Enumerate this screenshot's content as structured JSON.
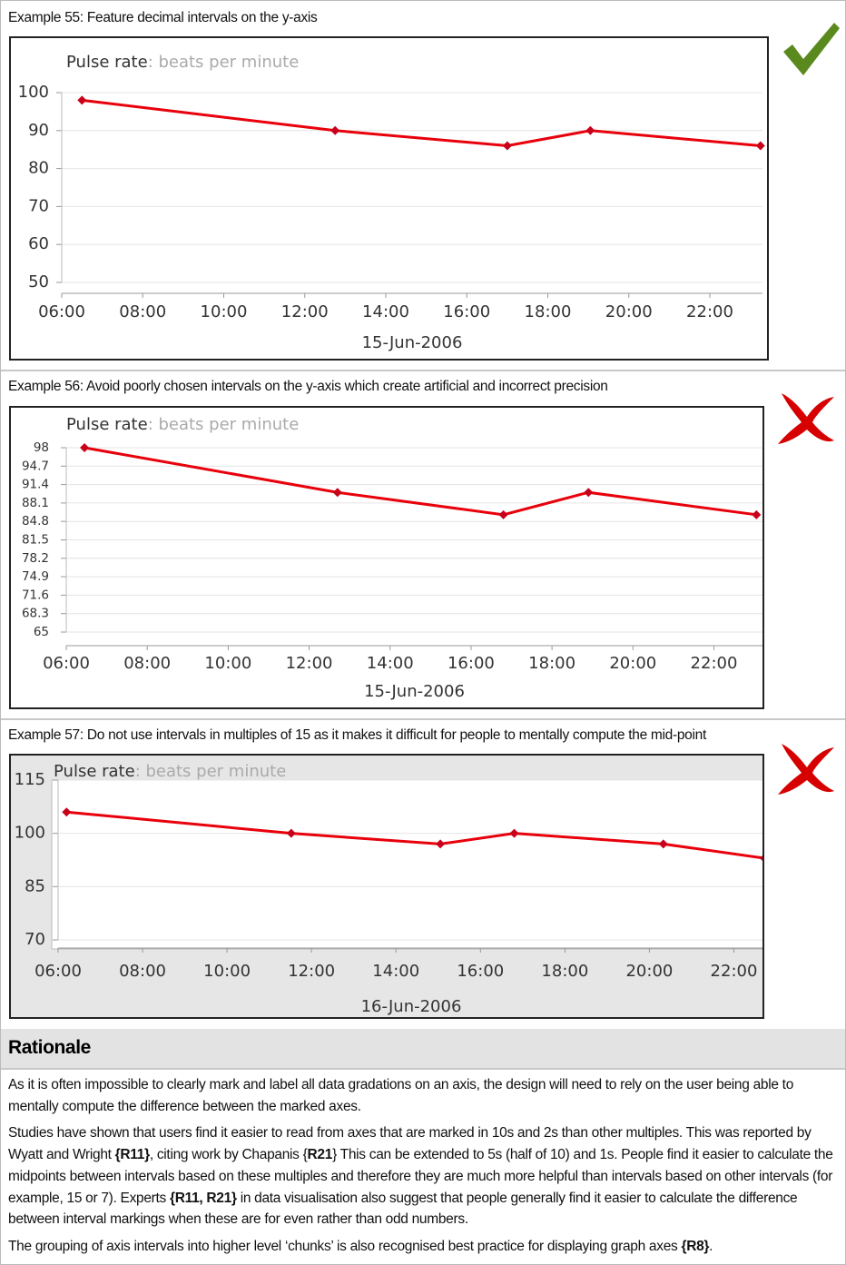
{
  "examples": [
    {
      "caption": "Example 55: Feature decimal intervals on the y-axis"
    },
    {
      "caption": "Example 56: Avoid poorly chosen intervals on the y-axis which create artificial and incorrect precision"
    },
    {
      "caption": "Example 57: Do not use intervals in multiples of 15 as it makes it difficult for people to mentally compute the mid-point"
    }
  ],
  "chart_data": [
    {
      "type": "line",
      "title": "Pulse rate",
      "subtitle": ":  beats per minute",
      "xlabel": "15-Jun-2006",
      "x": [
        6.5,
        12.75,
        17,
        19.05,
        23.25
      ],
      "values": [
        98,
        90,
        86,
        90,
        86
      ],
      "color": "#e8000b",
      "xlim": [
        6,
        23.3
      ],
      "xticks": [
        {
          "value": 6,
          "label": "06:00"
        },
        {
          "value": 8,
          "label": "08:00"
        },
        {
          "value": 10,
          "label": "10:00"
        },
        {
          "value": 12,
          "label": "12:00"
        },
        {
          "value": 14,
          "label": "14:00"
        },
        {
          "value": 16,
          "label": "16:00"
        },
        {
          "value": 18,
          "label": "18:00"
        },
        {
          "value": 20,
          "label": "20:00"
        },
        {
          "value": 22,
          "label": "22:00"
        }
      ],
      "ylim": [
        50,
        100
      ],
      "yticks": [
        50,
        60,
        70,
        80,
        90,
        100
      ],
      "grid": true
    },
    {
      "type": "line",
      "title": "Pulse rate",
      "subtitle": ":  beats per minute",
      "xlabel": "15-Jun-2006",
      "x": [
        6.45,
        12.7,
        16.8,
        18.9,
        23.05
      ],
      "values": [
        98,
        90,
        86,
        90,
        86
      ],
      "color": "#e8000b",
      "xlim": [
        6,
        23.2
      ],
      "xticks": [
        {
          "value": 6,
          "label": "06:00"
        },
        {
          "value": 8,
          "label": "08:00"
        },
        {
          "value": 10,
          "label": "10:00"
        },
        {
          "value": 12,
          "label": "12:00"
        },
        {
          "value": 14,
          "label": "14:00"
        },
        {
          "value": 16,
          "label": "16:00"
        },
        {
          "value": 18,
          "label": "18:00"
        },
        {
          "value": 20,
          "label": "20:00"
        },
        {
          "value": 22,
          "label": "22:00"
        }
      ],
      "ylim": [
        65,
        98
      ],
      "yticks": [
        65,
        68.3,
        71.6,
        74.9,
        78.2,
        81.5,
        84.8,
        88.1,
        91.4,
        94.7,
        98
      ],
      "grid": true
    },
    {
      "type": "line",
      "title": "Pulse rate",
      "subtitle": ": beats per minute",
      "xlabel": "16-Jun-2006",
      "x": [
        6.2,
        11.52,
        15.05,
        16.8,
        20.33,
        22.72
      ],
      "values": [
        106,
        100,
        97,
        100,
        97,
        93
      ],
      "color": "#e8000b",
      "xlim": [
        6,
        22.72
      ],
      "xticks": [
        {
          "value": 6,
          "label": "06:00"
        },
        {
          "value": 8,
          "label": "08:00"
        },
        {
          "value": 10,
          "label": "10:00"
        },
        {
          "value": 12,
          "label": "12:00"
        },
        {
          "value": 14,
          "label": "14:00"
        },
        {
          "value": 16,
          "label": "16:00"
        },
        {
          "value": 18,
          "label": "18:00"
        },
        {
          "value": 20,
          "label": "20:00"
        },
        {
          "value": 22,
          "label": "22:00"
        }
      ],
      "ylim": [
        70,
        115
      ],
      "yticks": [
        70,
        85,
        100,
        115
      ],
      "grid": true
    }
  ],
  "rationale": {
    "heading": "Rationale",
    "paragraphs": [
      [
        {
          "text": "As it is often impossible to clearly mark and label all data gradations on an axis, the design will need to rely on the user being able to mentally compute the difference between the marked axes."
        }
      ],
      [
        {
          "text": "Studies have shown that users find it easier to read from axes that are marked in 10s and 2s than other multiples. This was reported by Wyatt and Wright "
        },
        {
          "text": "{R11}",
          "bold": true
        },
        {
          "text": ", citing work by Chapanis {"
        },
        {
          "text": "R21",
          "bold": true
        },
        {
          "text": "} This can be extended to 5s (half of 10) and 1s. People find it easier to calculate the midpoints between intervals based on these multiples and therefore they are much more helpful than intervals based on other intervals (for example, 15 or 7). Experts "
        },
        {
          "text": "{R11, R21}",
          "bold": true
        },
        {
          "text": " in data visualisation also suggest that people generally find it easier to calculate the difference between interval markings when these are for even rather than odd numbers."
        }
      ],
      [
        {
          "text": "The grouping of axis intervals into higher level ‘chunks’ is also recognised best practice for displaying graph axes "
        },
        {
          "text": "{R8}",
          "bold": true
        },
        {
          "text": "."
        }
      ]
    ]
  }
}
